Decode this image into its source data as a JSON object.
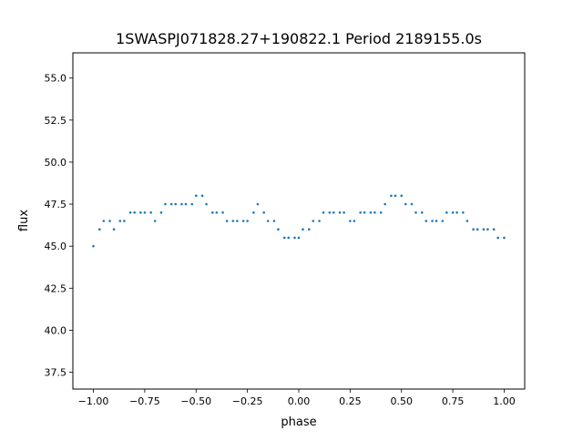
{
  "chart_data": {
    "type": "scatter",
    "title": "1SWASPJ071828.27+190822.1 Period 2189155.0s",
    "xlabel": "phase",
    "ylabel": "flux",
    "xlim": [
      -1.1,
      1.1
    ],
    "ylim": [
      36.5,
      56.5
    ],
    "xticks": [
      -1.0,
      -0.75,
      -0.5,
      -0.25,
      0.0,
      0.25,
      0.5,
      0.75,
      1.0
    ],
    "xtick_labels": [
      "−1.00",
      "−0.75",
      "−0.50",
      "−0.25",
      "0.00",
      "0.25",
      "0.50",
      "0.75",
      "1.00"
    ],
    "yticks": [
      37.5,
      40.0,
      42.5,
      45.0,
      47.5,
      50.0,
      52.5,
      55.0
    ],
    "ytick_labels": [
      "37.5",
      "40.0",
      "42.5",
      "45.0",
      "47.5",
      "50.0",
      "52.5",
      "55.0"
    ],
    "grid": false,
    "legend": "none",
    "marker_color": "#1f77b4",
    "series": [
      {
        "x": [
          -1.0,
          -0.97,
          -0.95,
          -0.92,
          -0.9,
          -0.87,
          -0.85,
          -0.82,
          -0.8,
          -0.77,
          -0.75,
          -0.72,
          -0.7,
          -0.67,
          -0.65,
          -0.62,
          -0.6,
          -0.57,
          -0.55,
          -0.52,
          -0.5,
          -0.47,
          -0.45,
          -0.42,
          -0.4,
          -0.37,
          -0.35,
          -0.32,
          -0.3,
          -0.27,
          -0.25,
          -0.22,
          -0.2,
          -0.17,
          -0.15,
          -0.12,
          -0.1,
          -0.07,
          -0.05,
          -0.02,
          0.0,
          0.02,
          0.05,
          0.07,
          0.1,
          0.12,
          0.15,
          0.17,
          0.2,
          0.22,
          0.25,
          0.27,
          0.3,
          0.32,
          0.35,
          0.37,
          0.4,
          0.42,
          0.45,
          0.47,
          0.5,
          0.52,
          0.55,
          0.57,
          0.6,
          0.62,
          0.65,
          0.67,
          0.7,
          0.72,
          0.75,
          0.77,
          0.8,
          0.82,
          0.85,
          0.87,
          0.9,
          0.92,
          0.95,
          0.97,
          1.0
        ],
        "y": [
          45.0,
          46.0,
          46.5,
          46.5,
          46.0,
          46.5,
          46.5,
          47.0,
          47.0,
          47.0,
          47.0,
          47.0,
          46.5,
          47.0,
          47.5,
          47.5,
          47.5,
          47.5,
          47.5,
          47.5,
          48.0,
          48.0,
          47.5,
          47.0,
          47.0,
          47.0,
          46.5,
          46.5,
          46.5,
          46.5,
          46.5,
          47.0,
          47.5,
          47.0,
          46.5,
          46.5,
          46.0,
          45.5,
          45.5,
          45.5,
          45.5,
          46.0,
          46.0,
          46.5,
          46.5,
          47.0,
          47.0,
          47.0,
          47.0,
          47.0,
          46.5,
          46.5,
          47.0,
          47.0,
          47.0,
          47.0,
          47.0,
          47.5,
          48.0,
          48.0,
          48.0,
          47.5,
          47.5,
          47.0,
          47.0,
          46.5,
          46.5,
          46.5,
          46.5,
          47.0,
          47.0,
          47.0,
          47.0,
          46.5,
          46.0,
          46.0,
          46.0,
          46.0,
          46.0,
          45.5,
          45.5
        ]
      }
    ]
  }
}
